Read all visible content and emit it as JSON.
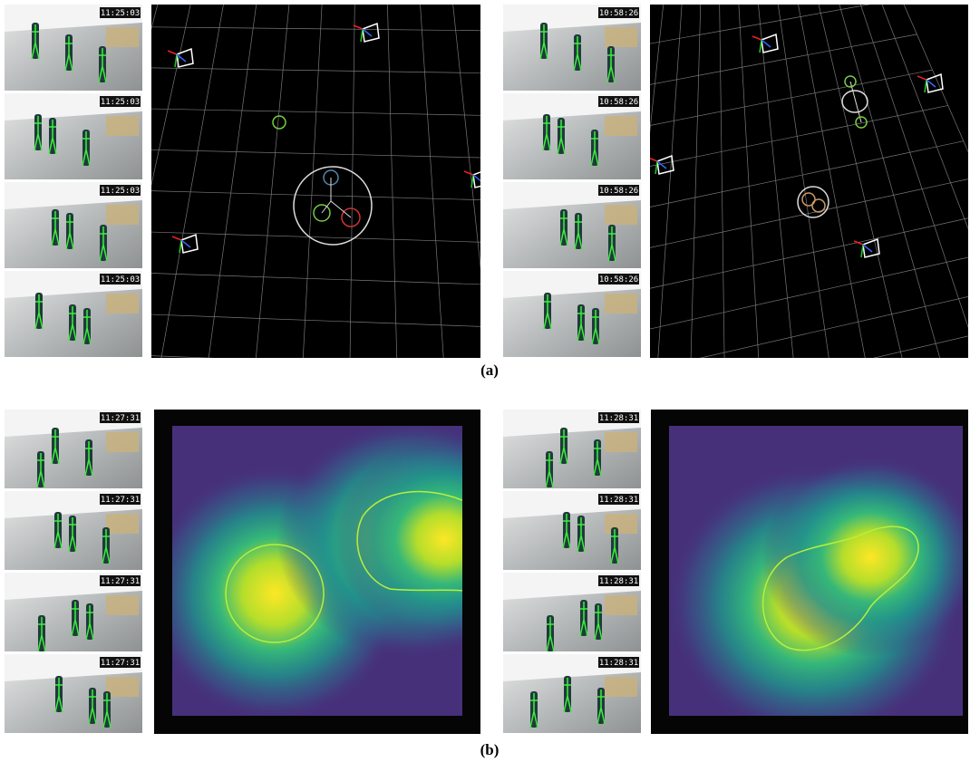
{
  "panels": [
    {
      "label": "(a)",
      "views": [
        {
          "timestamps": [
            "11:25:03",
            "11:25:03",
            "11:25:03",
            "11:25:03"
          ]
        },
        {
          "timestamps": [
            "10:58:26",
            "10:58:26",
            "10:58:26",
            "10:58:26"
          ]
        }
      ]
    },
    {
      "label": "(b)",
      "views": [
        {
          "timestamps": [
            "11:27:31",
            "11:27:31",
            "11:27:31",
            "11:27:31"
          ]
        },
        {
          "timestamps": [
            "11:28:31",
            "11:28:31",
            "11:28:31",
            "11:28:31"
          ]
        }
      ]
    }
  ]
}
